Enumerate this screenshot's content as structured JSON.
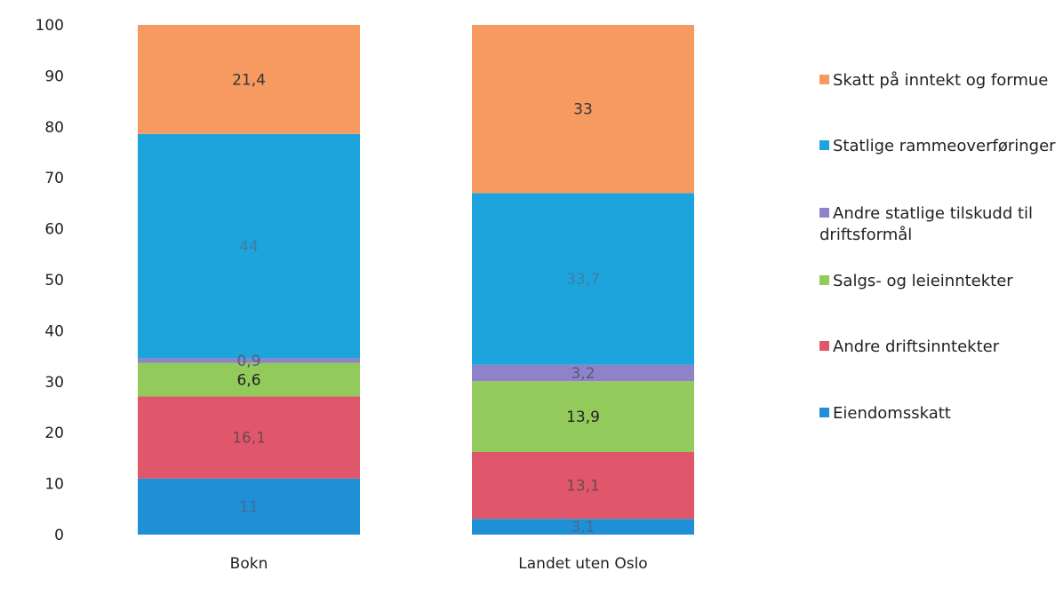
{
  "chart_data": {
    "type": "bar",
    "stacked": true,
    "categories": [
      "Bokn",
      "Landet uten Oslo"
    ],
    "ylim": [
      0,
      100
    ],
    "yticks": [
      0,
      10,
      20,
      30,
      40,
      50,
      60,
      70,
      80,
      90,
      100
    ],
    "grid": false,
    "legend_position": "right",
    "series": [
      {
        "name": "Eiendomsskatt",
        "color": "#1f8fd6",
        "values": [
          11,
          3.1
        ],
        "labels": [
          "11",
          "3,1"
        ],
        "label_color": "#4a6a8a"
      },
      {
        "name": "Andre driftsinntekter",
        "color": "#e0566b",
        "values": [
          16.1,
          13.1
        ],
        "labels": [
          "16,1",
          "13,1"
        ],
        "label_color": "#6a4a50"
      },
      {
        "name": "Salgs- og leieinntekter",
        "color": "#92cb5c",
        "values": [
          6.6,
          13.9
        ],
        "labels": [
          "6,6",
          "13,9"
        ],
        "label_color": "#222222"
      },
      {
        "name": "Andre statlige tilskudd til driftsformål",
        "legend_lines": [
          "Andre statlige tilskudd til",
          "driftsformål"
        ],
        "color": "#8f82c9",
        "values": [
          0.9,
          3.2
        ],
        "labels": [
          "0,9",
          "3,2"
        ],
        "label_color": "#5a5a7a"
      },
      {
        "name": "Statlige rammeoverføringer",
        "color": "#1ea4dc",
        "values": [
          44,
          33.7
        ],
        "labels": [
          "44",
          "33,7"
        ],
        "label_color": "#3d7fa3"
      },
      {
        "name": "Skatt på inntekt og formue",
        "color": "#f79a62",
        "values": [
          21.4,
          33
        ],
        "labels": [
          "21,4",
          "33"
        ],
        "label_color": "#333333"
      }
    ]
  }
}
